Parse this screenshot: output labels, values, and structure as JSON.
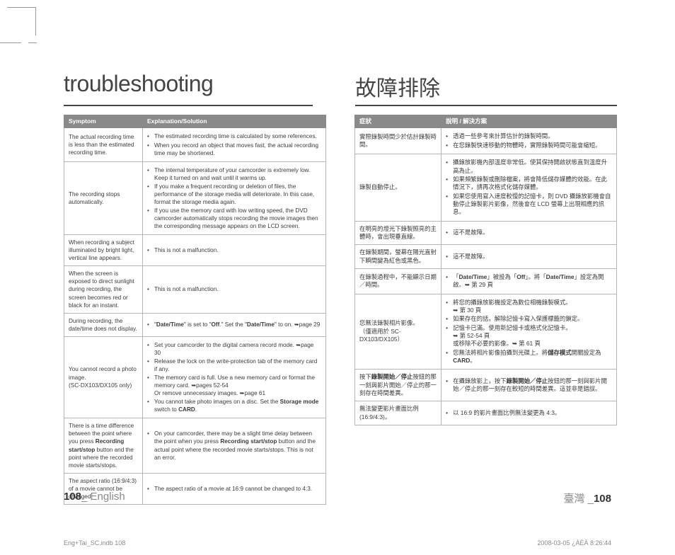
{
  "titles": {
    "en": "troubleshooting",
    "zh": "故障排除"
  },
  "headers": {
    "en": {
      "symptom": "Symptom",
      "explanation": "Explanation/Solution"
    },
    "zh": {
      "symptom": "症狀",
      "explanation": "說明 / 解決方案"
    }
  },
  "rows_en": [
    {
      "symptom": "The actual recording time is less than the estimated recording time.",
      "items": [
        "The estimated recording time is calculated by some references.",
        "When you record an object that moves fast, the actual recording time may be shortened."
      ]
    },
    {
      "symptom": "The recording stops automatically.",
      "items": [
        "The internal temperature of your camcorder is extremely low. Keep it turned on and wait until it warms up.",
        "If you make a frequent recording or deletion of files, the performance of the storage media will deteriorate. In this case, format the storage media again.",
        "If you use the memory card with low writing speed, the DVD camcorder automatically stops recording the movie images then the corresponding message appears on the LCD screen."
      ]
    },
    {
      "symptom": "When recording a subject illuminated by bright light, vertical line appears.",
      "items": [
        "This is not a malfunction."
      ]
    },
    {
      "symptom": "When the screen is exposed to direct sunlight during recording, the screen becomes red or black for an instant.",
      "items": [
        "This is not a malfunction."
      ]
    },
    {
      "symptom": "During recording, the date/time does not display.",
      "items": [
        "\"<b>Date/Time</b>\" is set to \"<b>Off</b>.\" Set the \"<b>Date/Time</b>\" to on. ➥page 29"
      ]
    },
    {
      "symptom": "You cannot record a photo image.\n(SC-DX103/DX105 only)",
      "items": [
        "Set your camcorder to the digital camera record mode. ➥page 30",
        "Release the lock on the write-protection tab of the memory card if any.",
        "The memory card is full. Use a new memory card or format the memory card. ➥pages 52-54\nOr remove unnecessary images. ➥page 61",
        "You cannot take photo images on a disc. Set the <b>Storage mode</b> switch to <b>CARD</b>."
      ]
    },
    {
      "symptom": "There is a time difference between the point where you press <b>Recording start/stop</b> button and the point where the recorded movie starts/stops.",
      "items": [
        "On your camcorder, there may be a slight time delay between the point when you press <b>Recording start/stop</b> button and the actual point where the recorded movie starts/stops. This is not an error."
      ]
    },
    {
      "symptom": "The aspect ratio (16:9/4:3) of a movie cannot be changed.",
      "items": [
        "The aspect ratio of a movie at 16:9 cannot be changed to 4:3."
      ]
    }
  ],
  "rows_zh": [
    {
      "symptom": "實際錄製時間少於估計錄製時間。",
      "items": [
        "透過一些參考來計算估計的錄製時間。",
        "在您錄製快速移動的物體時，實際錄製時間可能會縮短。"
      ]
    },
    {
      "symptom": "錄製自動停止。",
      "items": [
        "攝錄放影機內部溫度非常低。使其保持開啟狀態直到溫度升高為止。",
        "如果頻繁錄製或刪除檔案，將會降低儲存媒體的效能。在此情況下，請再次格式化儲存媒體。",
        "如果您使用寫入速度較慢的記憶卡，則 DVD 攝錄放影機會自動停止錄製影片影像，然後會在 LCD 螢幕上出現相應的訊息。"
      ]
    },
    {
      "symptom": "在明亮的燈光下錄製照亮的主體時，會出現垂直線。",
      "items": [
        "這不是故障。"
      ]
    },
    {
      "symptom": "在錄製期間，螢幕在陽光直射下瞬間變為紅色或黑色。",
      "items": [
        "這不是故障。"
      ]
    },
    {
      "symptom": "在錄製過程中，不能顯示日期／時間。",
      "items": [
        "「<b>Date/Time</b>」被設為「<b>Off</b>」。將「<b>Date/Time</b>」設定為開啟。➥ 第 29 頁"
      ]
    },
    {
      "symptom": "您無法錄製相片影像。\n（僅適用於 SC-DX103/DX105）",
      "items": [
        "將您的攝錄放影機設定為數位相機錄製模式。\n➥ 第 30 頁",
        "如果存在的話，解除記憶卡寫入保護標籤的鎖定。",
        "記憶卡已滿。使用新記憶卡或格式化記憶卡。\n➥ 第 52-54 頁\n或移除不必要的影像。➥ 第 61 頁",
        "您無法將相片影像拍攝到光碟上。將<b>儲存模式</b>開關設定為 <b>CARD</b>。"
      ]
    },
    {
      "symptom": "按下<b>錄製開始／停止</b>按鈕的那一刻與影片開始／停止的那一刻存在時間差異。",
      "items": [
        "在攝錄放影上，按下<b>錄製開始／停止</b>按鈕的那一刻與影片開始／停止的那一刻存在較短的時間差異。這並非是錯誤。"
      ]
    },
    {
      "symptom": "無法變更影片畫面比例 (16:9/4:3)。",
      "items": [
        "以 16:9 的影片畫面比例無法變更為 4:3。"
      ]
    }
  ],
  "footer": {
    "left_page": "108",
    "left_sep": "_ ",
    "left_lang": "English",
    "right_lang": "臺灣 ",
    "right_sep": "_",
    "right_page": "108"
  },
  "printmark": {
    "left": "Eng+Tai_SC.indb   108",
    "right": "2008-03-05   ¿ÀÈÄ 8:26:44"
  }
}
